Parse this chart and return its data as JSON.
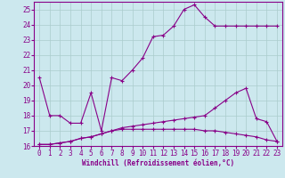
{
  "xlabel": "Windchill (Refroidissement éolien,°C)",
  "bg_color": "#cce8ee",
  "line_color": "#880088",
  "grid_color": "#aacccc",
  "hours": [
    0,
    1,
    2,
    3,
    4,
    5,
    6,
    7,
    8,
    9,
    10,
    11,
    12,
    13,
    14,
    15,
    16,
    17,
    18,
    19,
    20,
    21,
    22,
    23
  ],
  "line1": [
    20.5,
    18.0,
    18.0,
    17.5,
    17.5,
    19.5,
    17.0,
    20.5,
    20.3,
    21.0,
    21.8,
    23.2,
    23.3,
    23.9,
    25.0,
    25.3,
    24.5,
    23.9,
    23.9,
    23.9,
    23.9,
    23.9,
    23.9,
    23.9
  ],
  "line2": [
    16.1,
    16.1,
    16.2,
    16.3,
    16.5,
    16.6,
    16.8,
    17.0,
    17.2,
    17.3,
    17.4,
    17.5,
    17.6,
    17.7,
    17.8,
    17.9,
    18.0,
    18.5,
    19.0,
    19.5,
    19.8,
    17.8,
    17.6,
    16.3
  ],
  "line3": [
    16.1,
    16.1,
    16.2,
    16.3,
    16.5,
    16.6,
    16.8,
    17.0,
    17.1,
    17.1,
    17.1,
    17.1,
    17.1,
    17.1,
    17.1,
    17.1,
    17.0,
    17.0,
    16.9,
    16.8,
    16.7,
    16.6,
    16.4,
    16.3
  ],
  "ylim": [
    16,
    25.5
  ],
  "xlim": [
    -0.5,
    23.5
  ],
  "yticks": [
    16,
    17,
    18,
    19,
    20,
    21,
    22,
    23,
    24,
    25
  ],
  "xticks": [
    0,
    1,
    2,
    3,
    4,
    5,
    6,
    7,
    8,
    9,
    10,
    11,
    12,
    13,
    14,
    15,
    16,
    17,
    18,
    19,
    20,
    21,
    22,
    23
  ]
}
